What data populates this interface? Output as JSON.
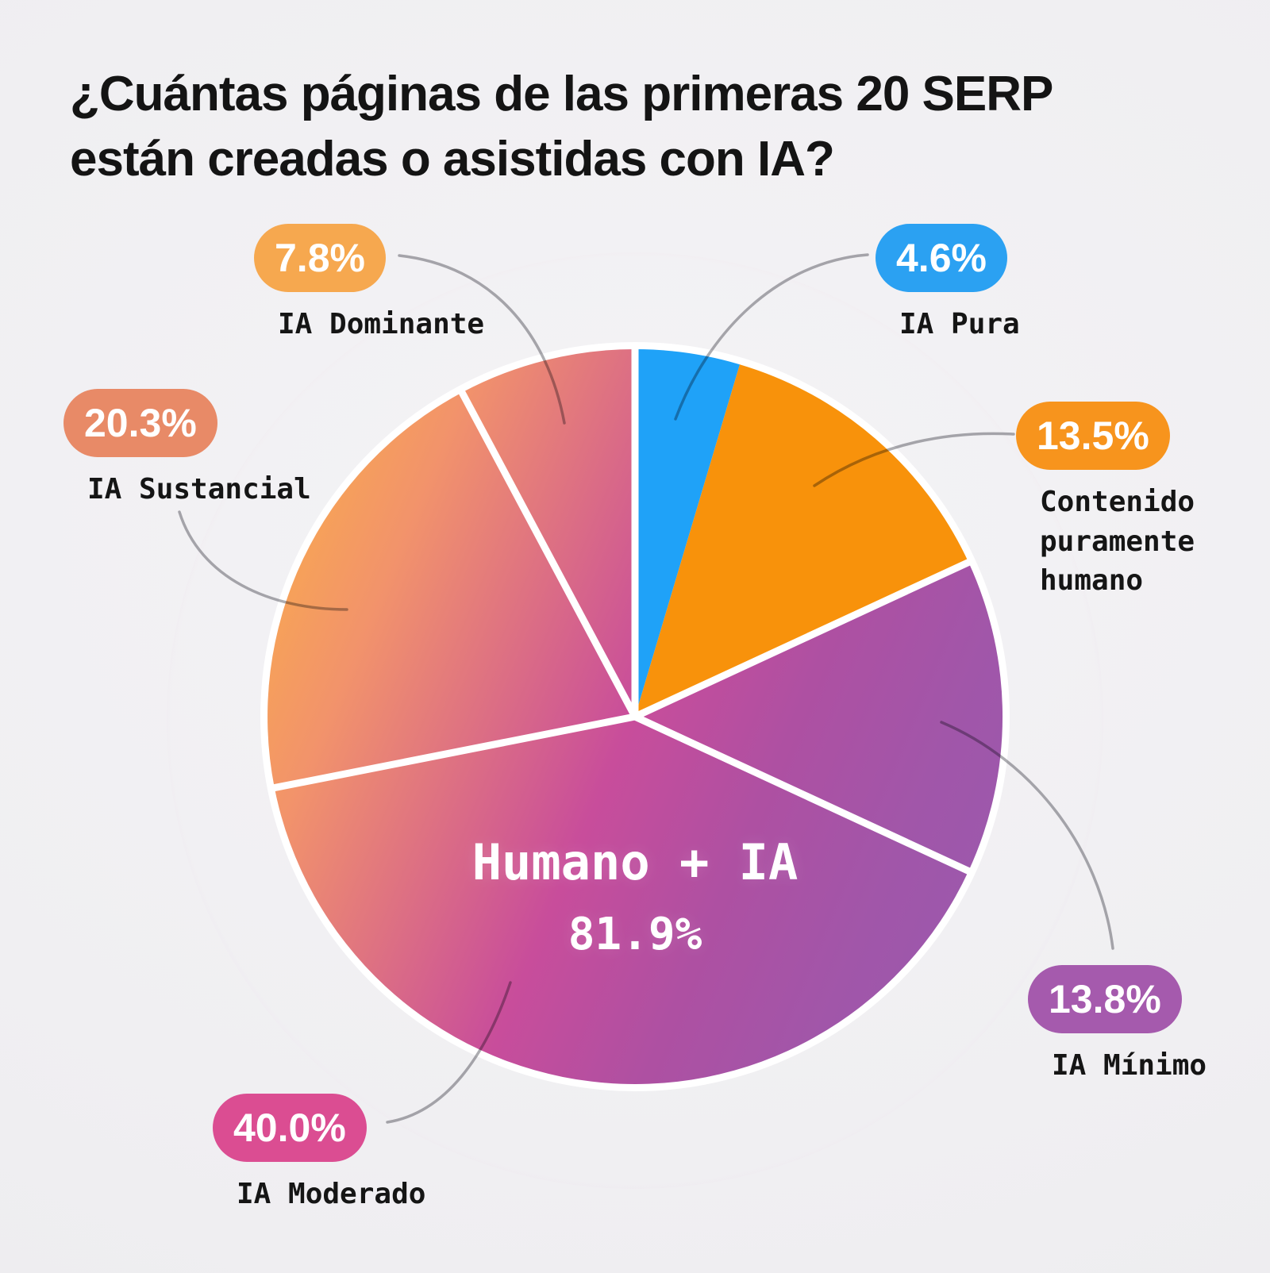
{
  "title": "¿Cuántas páginas de las primeras 20 SERP\nestán creadas o asistidas con IA?",
  "chart_data": {
    "type": "pie",
    "title": "¿Cuántas páginas de las primeras 20 SERP están creadas o asistidas con IA?",
    "direction": "clockwise",
    "start_angle_deg": 0,
    "legend_position": "callouts-around-pie",
    "center_label": {
      "title": "Humano + IA",
      "pct_label": "81.9%",
      "value": 81.9
    },
    "slices": [
      {
        "label": "IA Pura",
        "value": 4.6,
        "pct_label": "4.6%",
        "color": "#1FA2F8",
        "badge_color": "#2BA1F2",
        "separator_before": true
      },
      {
        "label": "Contenido puramente humano",
        "value": 13.5,
        "pct_label": "13.5%",
        "color": "#F8920B",
        "badge_color": "#F7941D",
        "separator_before": false
      },
      {
        "label": "IA Mínimo",
        "value": 13.8,
        "pct_label": "13.8%",
        "color": "gradient",
        "badge_color": "#A55AAD",
        "separator_before": true
      },
      {
        "label": "IA Moderado",
        "value": 40.0,
        "pct_label": "40.0%",
        "color": "gradient",
        "badge_color": "#DB4D92",
        "separator_before": true
      },
      {
        "label": "IA Sustancial",
        "value": 20.3,
        "pct_label": "20.3%",
        "color": "gradient",
        "badge_color": "#E88A67",
        "separator_before": true
      },
      {
        "label": "IA Dominante",
        "value": 7.8,
        "pct_label": "7.8%",
        "color": "gradient",
        "badge_color": "#F6A84F",
        "separator_before": true
      }
    ],
    "gradient_stops": [
      {
        "offset": 0.0,
        "color": "#F8A851"
      },
      {
        "offset": 0.16,
        "color": "#F2936B"
      },
      {
        "offset": 0.51,
        "color": "#C84D9B"
      },
      {
        "offset": 0.7,
        "color": "#AE50A2"
      },
      {
        "offset": 0.88,
        "color": "#A156A9"
      },
      {
        "offset": 1.0,
        "color": "#9C58AC"
      }
    ],
    "separator_color": "#FFFFFF",
    "leader_line_color": "#9F9FA3"
  }
}
